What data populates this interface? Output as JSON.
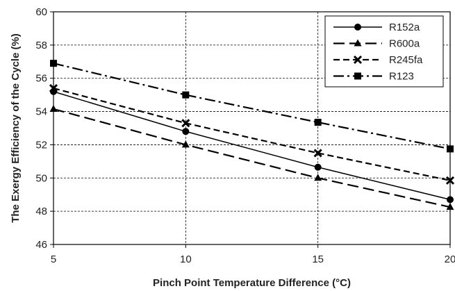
{
  "chart_data": {
    "type": "line",
    "title": "",
    "xlabel": "Pinch Point Temperature Difference (°C)",
    "ylabel": "The Exergy Efficiency of the Cycle (%)",
    "xlim": [
      5,
      20
    ],
    "ylim": [
      46,
      60
    ],
    "x_ticks": [
      "5",
      "10",
      "15",
      "20"
    ],
    "y_ticks": [
      "46",
      "48",
      "50",
      "52",
      "54",
      "56",
      "58",
      "60"
    ],
    "grid": true,
    "legend_position": "top-right",
    "x": [
      5,
      10,
      15,
      20
    ],
    "series": [
      {
        "name": "R152a",
        "values": [
          55.2,
          52.8,
          50.65,
          48.7
        ],
        "marker": "circle",
        "line_style": "solid",
        "color": "#000000"
      },
      {
        "name": "R600a",
        "values": [
          54.15,
          52.0,
          50.0,
          48.25
        ],
        "marker": "triangle",
        "line_style": "long-dash",
        "color": "#000000"
      },
      {
        "name": "R245fa",
        "values": [
          55.4,
          53.3,
          51.5,
          49.85
        ],
        "marker": "x",
        "line_style": "dash",
        "color": "#000000"
      },
      {
        "name": "R123",
        "values": [
          56.9,
          55.0,
          53.35,
          51.75
        ],
        "marker": "square",
        "line_style": "dash-dot",
        "color": "#000000"
      }
    ]
  }
}
